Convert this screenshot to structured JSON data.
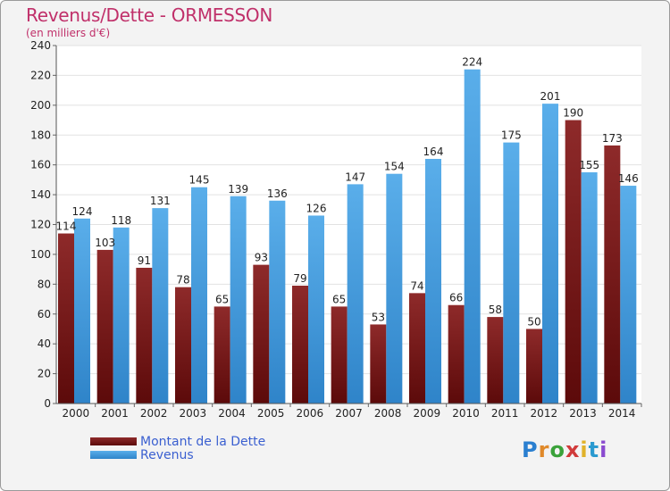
{
  "header": {
    "title": "Revenus/Dette - ORMESSON",
    "subtitle": "(en milliers d'€)"
  },
  "colors": {
    "dette": "#7a1c1c",
    "revenus": "#4a9de0",
    "title": "#c0306a"
  },
  "logo": {
    "text": "Proxiti",
    "icon": "proxiti-logo"
  },
  "chart_data": {
    "type": "bar",
    "title": "Revenus/Dette - ORMESSON",
    "subtitle": "(en milliers d'€)",
    "xlabel": "",
    "ylabel": "",
    "ylim": [
      0,
      240
    ],
    "ytick_step": 20,
    "grid": true,
    "legend": "bottom-left",
    "categories": [
      "2000",
      "2001",
      "2002",
      "2003",
      "2004",
      "2005",
      "2006",
      "2007",
      "2008",
      "2009",
      "2010",
      "2011",
      "2012",
      "2013",
      "2014"
    ],
    "series": [
      {
        "name": "Montant de la Dette",
        "values": [
          114,
          103,
          91,
          78,
          65,
          93,
          79,
          65,
          53,
          74,
          66,
          58,
          50,
          190,
          173
        ]
      },
      {
        "name": "Revenus",
        "values": [
          124,
          118,
          131,
          145,
          139,
          136,
          126,
          147,
          154,
          164,
          224,
          175,
          201,
          155,
          146
        ]
      }
    ]
  }
}
